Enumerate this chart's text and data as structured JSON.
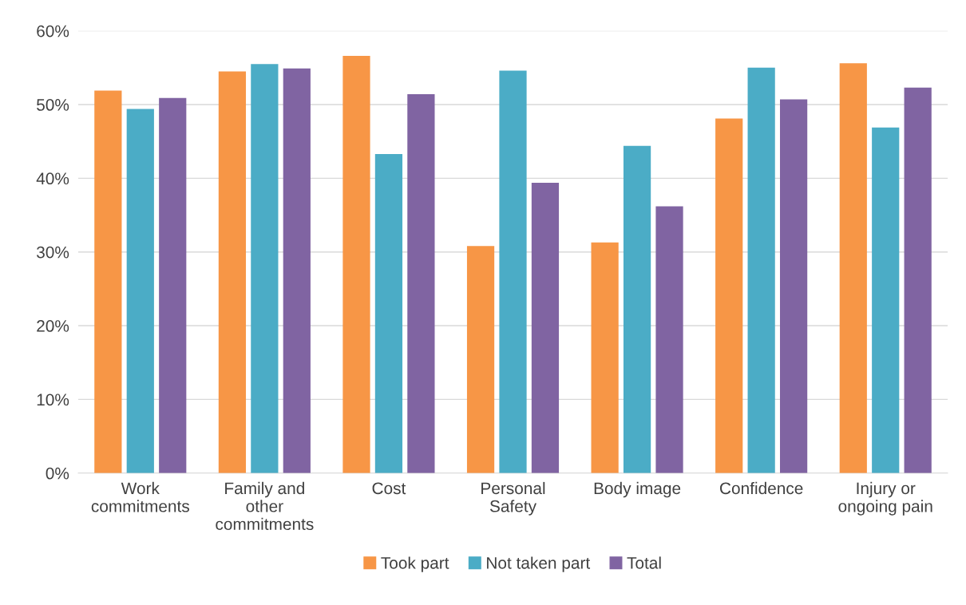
{
  "chart_data": {
    "type": "bar",
    "categories": [
      "Work\ncommitments",
      "Family and\nother\ncommitments",
      "Cost",
      "Personal\nSafety",
      "Body image",
      "Confidence",
      "Injury or\nongoing pain"
    ],
    "series": [
      {
        "name": "Took part",
        "color": "#f79646",
        "values": [
          51.9,
          54.5,
          56.6,
          30.8,
          31.3,
          48.1,
          55.6
        ]
      },
      {
        "name": "Not taken part",
        "color": "#4bacc6",
        "values": [
          49.4,
          55.5,
          43.3,
          54.6,
          44.4,
          55.0,
          46.9
        ]
      },
      {
        "name": "Total",
        "color": "#8064a2",
        "values": [
          50.9,
          54.9,
          51.4,
          39.4,
          36.2,
          50.7,
          52.3
        ]
      }
    ],
    "ylim": [
      0,
      60
    ],
    "yticks": [
      {
        "value": 0,
        "label": "0%"
      },
      {
        "value": 10,
        "label": "10%"
      },
      {
        "value": 20,
        "label": "20%"
      },
      {
        "value": 30,
        "label": "30%"
      },
      {
        "value": 40,
        "label": "40%"
      },
      {
        "value": 50,
        "label": "50%"
      },
      {
        "value": 60,
        "label": "60%"
      }
    ],
    "grid": "y",
    "legend": "bottom"
  }
}
